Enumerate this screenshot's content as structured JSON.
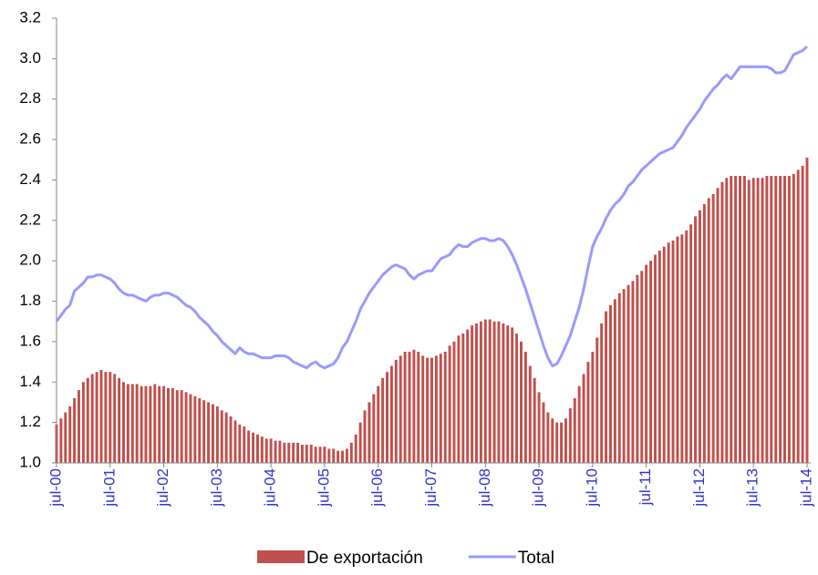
{
  "chart_data": {
    "type": "combo",
    "categories": [
      "jul-00",
      null,
      null,
      null,
      null,
      null,
      null,
      null,
      null,
      null,
      null,
      null,
      "jul-01",
      null,
      null,
      null,
      null,
      null,
      null,
      null,
      null,
      null,
      null,
      null,
      "jul-02",
      null,
      null,
      null,
      null,
      null,
      null,
      null,
      null,
      null,
      null,
      null,
      "jul-03",
      null,
      null,
      null,
      null,
      null,
      null,
      null,
      null,
      null,
      null,
      null,
      "jul-04",
      null,
      null,
      null,
      null,
      null,
      null,
      null,
      null,
      null,
      null,
      null,
      "jul-05",
      null,
      null,
      null,
      null,
      null,
      null,
      null,
      null,
      null,
      null,
      null,
      "jul-06",
      null,
      null,
      null,
      null,
      null,
      null,
      null,
      null,
      null,
      null,
      null,
      "jul-07",
      null,
      null,
      null,
      null,
      null,
      null,
      null,
      null,
      null,
      null,
      null,
      "jul-08",
      null,
      null,
      null,
      null,
      null,
      null,
      null,
      null,
      null,
      null,
      null,
      "jul-09",
      null,
      null,
      null,
      null,
      null,
      null,
      null,
      null,
      null,
      null,
      null,
      "jul-10",
      null,
      null,
      null,
      null,
      null,
      null,
      null,
      null,
      null,
      null,
      null,
      "jul-11",
      null,
      null,
      null,
      null,
      null,
      null,
      null,
      null,
      null,
      null,
      null,
      "jul-12",
      null,
      null,
      null,
      null,
      null,
      null,
      null,
      null,
      null,
      null,
      null,
      "jul-13",
      null,
      null,
      null,
      null,
      null,
      null,
      null,
      null,
      null,
      null,
      null,
      "jul-14"
    ],
    "series": [
      {
        "name": "De exportación",
        "type": "bar",
        "color": "#c0504d",
        "values": [
          1.19,
          1.22,
          1.25,
          1.28,
          1.32,
          1.36,
          1.4,
          1.42,
          1.44,
          1.45,
          1.46,
          1.45,
          1.45,
          1.44,
          1.42,
          1.4,
          1.39,
          1.39,
          1.39,
          1.38,
          1.38,
          1.38,
          1.39,
          1.38,
          1.38,
          1.37,
          1.37,
          1.36,
          1.36,
          1.35,
          1.34,
          1.33,
          1.32,
          1.31,
          1.3,
          1.29,
          1.28,
          1.26,
          1.25,
          1.23,
          1.21,
          1.19,
          1.18,
          1.16,
          1.15,
          1.14,
          1.13,
          1.12,
          1.12,
          1.11,
          1.11,
          1.1,
          1.1,
          1.1,
          1.1,
          1.09,
          1.09,
          1.09,
          1.08,
          1.08,
          1.08,
          1.07,
          1.07,
          1.06,
          1.06,
          1.07,
          1.1,
          1.14,
          1.2,
          1.26,
          1.3,
          1.34,
          1.38,
          1.42,
          1.45,
          1.48,
          1.51,
          1.53,
          1.55,
          1.55,
          1.56,
          1.55,
          1.53,
          1.52,
          1.52,
          1.53,
          1.54,
          1.55,
          1.58,
          1.6,
          1.63,
          1.64,
          1.66,
          1.68,
          1.69,
          1.7,
          1.71,
          1.71,
          1.7,
          1.7,
          1.69,
          1.68,
          1.67,
          1.64,
          1.6,
          1.55,
          1.48,
          1.42,
          1.35,
          1.3,
          1.25,
          1.22,
          1.2,
          1.2,
          1.22,
          1.27,
          1.32,
          1.38,
          1.44,
          1.5,
          1.55,
          1.62,
          1.69,
          1.75,
          1.78,
          1.81,
          1.84,
          1.86,
          1.88,
          1.9,
          1.93,
          1.95,
          1.98,
          2.0,
          2.03,
          2.05,
          2.07,
          2.09,
          2.1,
          2.12,
          2.13,
          2.15,
          2.18,
          2.22,
          2.25,
          2.28,
          2.31,
          2.33,
          2.36,
          2.39,
          2.41,
          2.42,
          2.42,
          2.42,
          2.42,
          2.4,
          2.41,
          2.41,
          2.41,
          2.42,
          2.42,
          2.42,
          2.42,
          2.42,
          2.42,
          2.43,
          2.45,
          2.47,
          2.51
        ]
      },
      {
        "name": "Total",
        "type": "line",
        "color": "#9999ff",
        "values": [
          1.7,
          1.73,
          1.76,
          1.78,
          1.85,
          1.87,
          1.89,
          1.92,
          1.92,
          1.93,
          1.93,
          1.92,
          1.91,
          1.89,
          1.86,
          1.84,
          1.83,
          1.83,
          1.82,
          1.81,
          1.8,
          1.82,
          1.83,
          1.83,
          1.84,
          1.84,
          1.83,
          1.82,
          1.8,
          1.78,
          1.77,
          1.75,
          1.72,
          1.7,
          1.68,
          1.65,
          1.63,
          1.6,
          1.58,
          1.56,
          1.54,
          1.57,
          1.55,
          1.54,
          1.54,
          1.53,
          1.52,
          1.52,
          1.52,
          1.53,
          1.53,
          1.53,
          1.52,
          1.5,
          1.49,
          1.48,
          1.47,
          1.49,
          1.5,
          1.48,
          1.47,
          1.48,
          1.49,
          1.52,
          1.57,
          1.6,
          1.65,
          1.7,
          1.76,
          1.8,
          1.84,
          1.87,
          1.9,
          1.93,
          1.95,
          1.97,
          1.98,
          1.97,
          1.96,
          1.93,
          1.91,
          1.93,
          1.94,
          1.95,
          1.95,
          1.98,
          2.01,
          2.02,
          2.03,
          2.06,
          2.08,
          2.07,
          2.07,
          2.09,
          2.1,
          2.11,
          2.11,
          2.1,
          2.1,
          2.11,
          2.1,
          2.07,
          2.03,
          1.98,
          1.92,
          1.86,
          1.79,
          1.72,
          1.65,
          1.58,
          1.52,
          1.48,
          1.49,
          1.53,
          1.58,
          1.63,
          1.7,
          1.77,
          1.86,
          1.97,
          2.07,
          2.12,
          2.16,
          2.21,
          2.25,
          2.28,
          2.3,
          2.33,
          2.37,
          2.39,
          2.42,
          2.45,
          2.47,
          2.49,
          2.51,
          2.53,
          2.54,
          2.55,
          2.56,
          2.59,
          2.62,
          2.66,
          2.69,
          2.72,
          2.75,
          2.79,
          2.82,
          2.85,
          2.87,
          2.9,
          2.92,
          2.9,
          2.93,
          2.96,
          2.96,
          2.96,
          2.96,
          2.96,
          2.96,
          2.96,
          2.95,
          2.93,
          2.93,
          2.94,
          2.98,
          3.02,
          3.03,
          3.04,
          3.06
        ]
      }
    ],
    "ylim": [
      1.0,
      3.2
    ],
    "yticks": [
      {
        "value": 1.0,
        "label": "1.0"
      },
      1.2,
      1.4,
      1.6,
      1.8,
      {
        "value": 2.0,
        "label": "2.0"
      },
      2.2,
      2.4,
      2.6,
      2.8,
      {
        "value": 3.0,
        "label": "3.0"
      },
      3.2
    ],
    "grid": false,
    "legend": "bottom"
  }
}
